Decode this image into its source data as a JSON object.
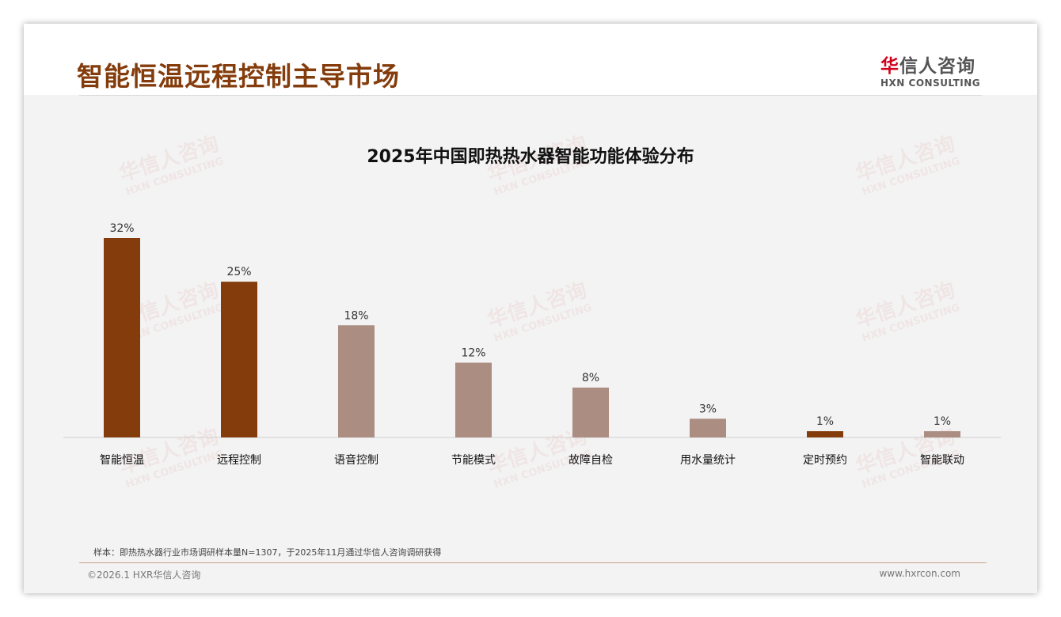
{
  "header": {
    "title": "智能恒温远程控制主导市场",
    "logo_cn_mark": "华",
    "logo_cn_rest": "信人咨询",
    "logo_en": "HXN CONSULTING"
  },
  "watermark": {
    "cn": "华信人咨询",
    "en": "HXN CONSULTING"
  },
  "chart_data": {
    "type": "bar",
    "title": "2025年中国即热热水器智能功能体验分布",
    "categories": [
      "智能恒温",
      "远程控制",
      "语音控制",
      "节能模式",
      "故障自检",
      "用水量统计",
      "定时预约",
      "智能联动"
    ],
    "values": [
      32,
      25,
      18,
      12,
      8,
      3,
      1,
      1
    ],
    "labels": [
      "32%",
      "25%",
      "18%",
      "12%",
      "8%",
      "3%",
      "1%",
      "1%"
    ],
    "highlight": [
      true,
      true,
      false,
      false,
      false,
      false,
      true,
      false
    ],
    "colors": {
      "highlight": "#843C0C",
      "normal": "#AB8D82"
    },
    "ylim": [
      0,
      32
    ],
    "xlabel": "",
    "ylabel": "",
    "grid": false
  },
  "footer": {
    "note": "样本：即热热水器行业市场调研样本量N=1307，于2025年11月通过华信人咨询调研获得",
    "copyright": "©2026.1 HXR华信人咨询",
    "url": "www.hxrcon.com"
  }
}
